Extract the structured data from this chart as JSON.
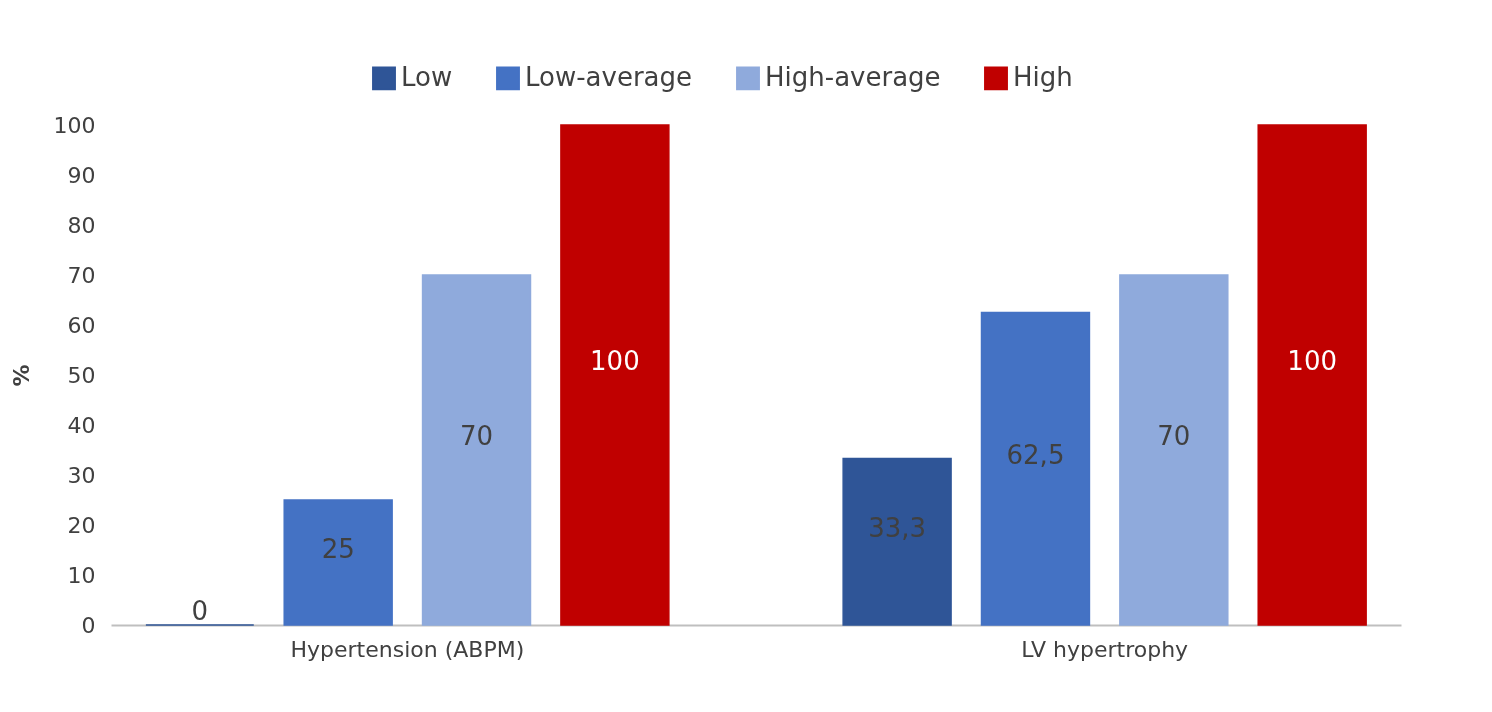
{
  "chart_data": {
    "type": "bar",
    "ylabel": "%",
    "categories": [
      "Hypertension (ABPM)",
      "LV hypertrophy"
    ],
    "series": [
      {
        "name": "Low",
        "color": "#2f5597",
        "values": [
          0,
          33.3
        ],
        "value_labels": [
          "0",
          "33,3"
        ]
      },
      {
        "name": "Low-average",
        "color": "#4472c4",
        "values": [
          25,
          62.5
        ],
        "value_labels": [
          "25",
          "62,5"
        ]
      },
      {
        "name": "High-average",
        "color": "#8faadc",
        "values": [
          70,
          70
        ],
        "value_labels": [
          "70",
          "70"
        ]
      },
      {
        "name": "High",
        "color": "#c00000",
        "values": [
          100,
          100
        ],
        "value_labels": [
          "100",
          "100"
        ]
      }
    ],
    "ylim": [
      0,
      100
    ],
    "yticks": [
      0,
      10,
      20,
      30,
      40,
      50,
      60,
      70,
      80,
      90,
      100
    ],
    "grid": false,
    "legend": "top"
  }
}
